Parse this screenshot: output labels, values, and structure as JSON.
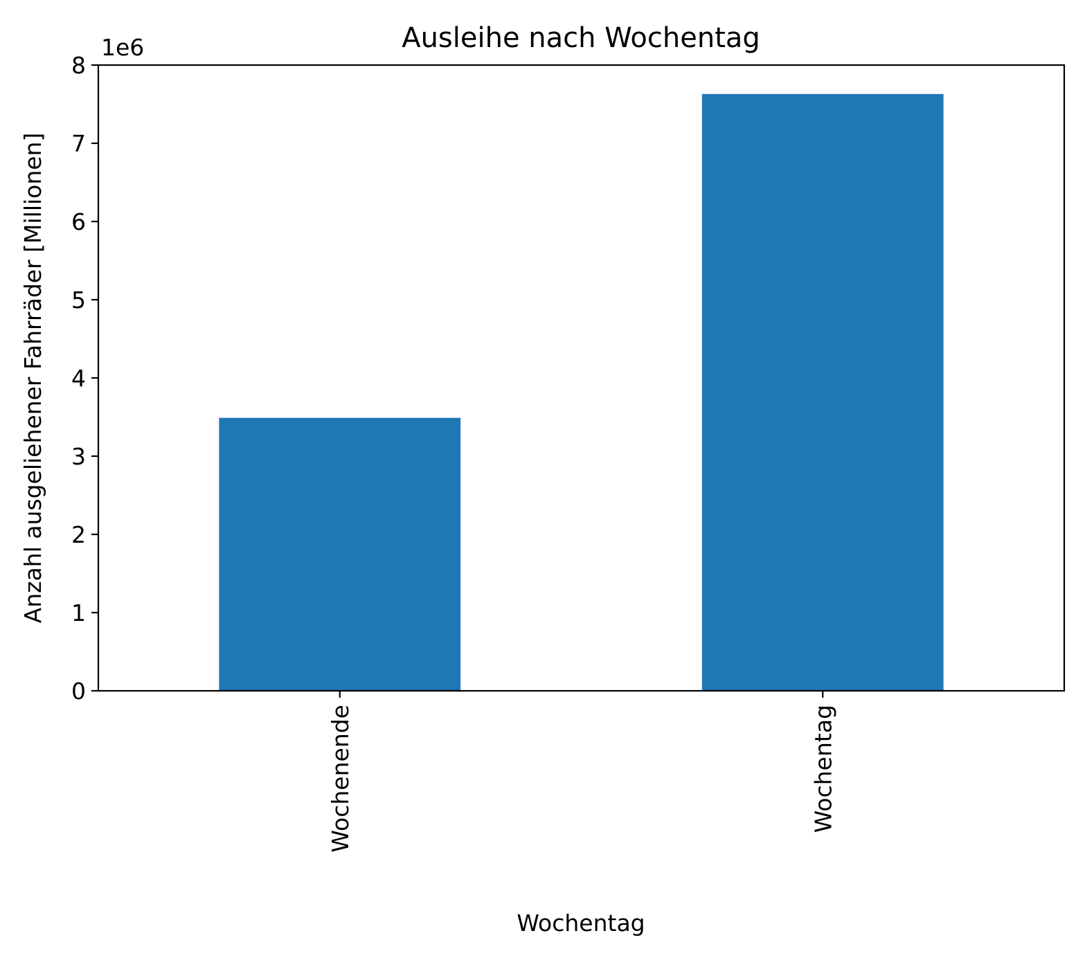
{
  "chart_data": {
    "type": "bar",
    "title": "Ausleihe nach Wochentag",
    "xlabel": "Wochentag",
    "ylabel": "Anzahl ausgeliehener Fahrräder [Millionen]",
    "y_offset_label": "1e6",
    "categories": [
      "Wochenende",
      "Wochentag"
    ],
    "values": [
      3490000,
      7630000
    ],
    "ylim": [
      0,
      8000000
    ],
    "yticks": [
      0,
      1,
      2,
      3,
      4,
      5,
      6,
      7,
      8
    ],
    "y_scale_factor": 1000000,
    "bar_color": "#1f77b4",
    "grid": false,
    "legend": "none"
  }
}
